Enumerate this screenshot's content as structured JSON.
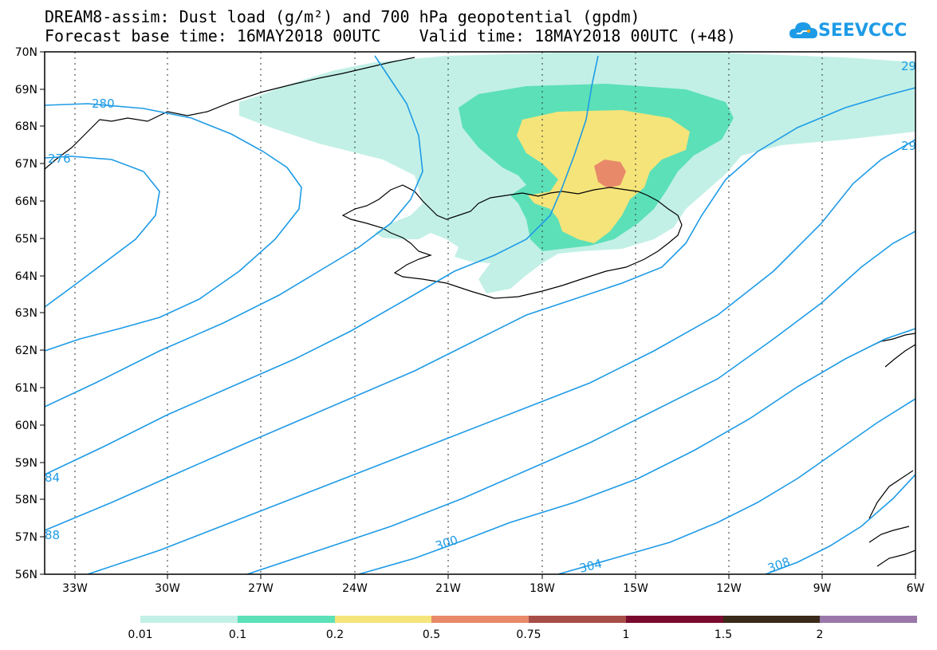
{
  "title": {
    "line1": "DREAM8-assim: Dust load (g/m²) and 700 hPa geopotential (gpdm)",
    "line2": "Forecast base time: 16MAY2018 00UTC    Valid time: 18MAY2018 00UTC (+48)"
  },
  "logo": {
    "text": "SEEVCCC",
    "icon": "cloud-logo-icon",
    "color": "#1e9be6"
  },
  "map": {
    "lat_labels": [
      "70N",
      "69N",
      "68N",
      "67N",
      "66N",
      "65N",
      "64N",
      "63N",
      "62N",
      "61N",
      "60N",
      "59N",
      "58N",
      "57N",
      "56N"
    ],
    "lon_labels": [
      "33W",
      "30W",
      "27W",
      "24W",
      "21W",
      "18W",
      "15W",
      "12W",
      "9W",
      "6W"
    ],
    "contour_labels": [
      "29",
      "29",
      "280",
      "276",
      "84",
      "88",
      "300",
      "304",
      "308"
    ],
    "contour_color": "#1e9be6",
    "coastline_color": "#000000"
  },
  "colorbar": {
    "labels": [
      "0.01",
      "0.1",
      "0.2",
      "0.5",
      "0.75",
      "1",
      "1.5",
      "2"
    ],
    "colors": [
      "#c2f0e6",
      "#5ce0b8",
      "#f5e47a",
      "#e88a6a",
      "#a84e48",
      "#7a0a2e",
      "#3a2a1a",
      "#9a78aa"
    ]
  }
}
